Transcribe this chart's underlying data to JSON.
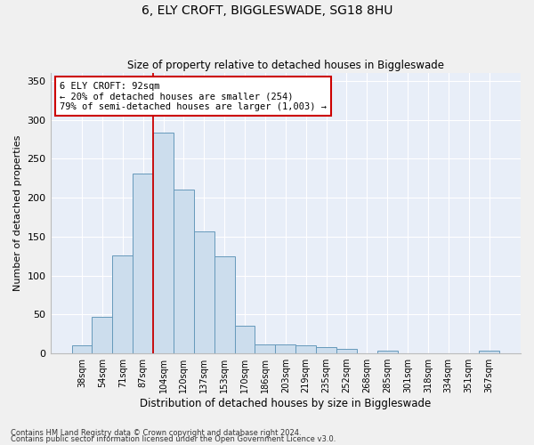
{
  "title": "6, ELY CROFT, BIGGLESWADE, SG18 8HU",
  "subtitle": "Size of property relative to detached houses in Biggleswade",
  "xlabel": "Distribution of detached houses by size in Biggleswade",
  "ylabel": "Number of detached properties",
  "bar_color": "#ccdded",
  "bar_edge_color": "#6699bb",
  "bg_color": "#e8eef8",
  "grid_color": "#ffffff",
  "annotation_line_color": "#cc0000",
  "annotation_box_color": "#cc0000",
  "categories": [
    "38sqm",
    "54sqm",
    "71sqm",
    "87sqm",
    "104sqm",
    "120sqm",
    "137sqm",
    "153sqm",
    "170sqm",
    "186sqm",
    "203sqm",
    "219sqm",
    "235sqm",
    "252sqm",
    "268sqm",
    "285sqm",
    "301sqm",
    "318sqm",
    "334sqm",
    "351sqm",
    "367sqm"
  ],
  "values": [
    10,
    47,
    126,
    231,
    283,
    210,
    157,
    125,
    35,
    11,
    11,
    10,
    8,
    6,
    0,
    3,
    0,
    0,
    0,
    0,
    3
  ],
  "ylim": [
    0,
    360
  ],
  "yticks": [
    0,
    50,
    100,
    150,
    200,
    250,
    300,
    350
  ],
  "annotation_line_xindex": 3.5,
  "annotation_text_line1": "6 ELY CROFT: 92sqm",
  "annotation_text_line2": "← 20% of detached houses are smaller (254)",
  "annotation_text_line3": "79% of semi-detached houses are larger (1,003) →",
  "footnote1": "Contains HM Land Registry data © Crown copyright and database right 2024.",
  "footnote2": "Contains public sector information licensed under the Open Government Licence v3.0."
}
